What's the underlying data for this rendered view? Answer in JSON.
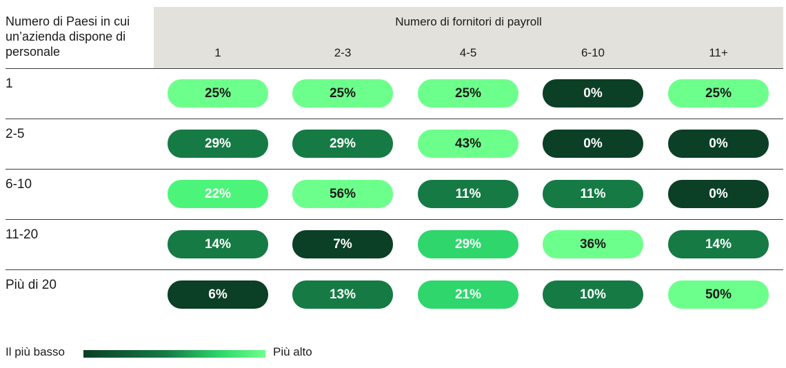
{
  "header": {
    "row_header_title": "Numero di Paesi in cui un’azienda dispone di personale",
    "col_group_title": "Numero di fornitori di payroll"
  },
  "legend": {
    "low_label": "Il più basso",
    "high_label": "Più alto"
  },
  "chart_data": {
    "type": "heatmap",
    "title": "",
    "xlabel": "Numero di fornitori di payroll",
    "ylabel": "Numero di Paesi in cui un’azienda dispone di personale",
    "columns": [
      "1",
      "2-3",
      "4-5",
      "6-10",
      "11+"
    ],
    "rows": [
      "1",
      "2-5",
      "6-10",
      "11-20",
      "Più di 20"
    ],
    "values": [
      [
        25,
        25,
        25,
        0,
        25
      ],
      [
        29,
        29,
        43,
        0,
        0
      ],
      [
        22,
        56,
        11,
        11,
        0
      ],
      [
        14,
        7,
        29,
        36,
        14
      ],
      [
        6,
        13,
        21,
        10,
        50
      ]
    ],
    "labels": [
      [
        "25%",
        "25%",
        "25%",
        "0%",
        "25%"
      ],
      [
        "29%",
        "29%",
        "43%",
        "0%",
        "0%"
      ],
      [
        "22%",
        "56%",
        "11%",
        "11%",
        "0%"
      ],
      [
        "14%",
        "7%",
        "29%",
        "36%",
        "14%"
      ],
      [
        "6%",
        "13%",
        "21%",
        "10%",
        "50%"
      ]
    ],
    "colors": [
      [
        "#6dff8c",
        "#6dff8c",
        "#6dff8c",
        "#0b3f26",
        "#6dff8c"
      ],
      [
        "#157a44",
        "#157a44",
        "#6dff8c",
        "#0b3f26",
        "#0b3f26"
      ],
      [
        "#4cf57a",
        "#6dff8c",
        "#157a44",
        "#157a44",
        "#0b3f26"
      ],
      [
        "#157a44",
        "#0b3f26",
        "#2ed66c",
        "#6dff8c",
        "#157a44"
      ],
      [
        "#0b3f26",
        "#157a44",
        "#2ed66c",
        "#157a44",
        "#6dff8c"
      ]
    ],
    "text_colors": [
      [
        "#1a1a1a",
        "#1a1a1a",
        "#1a1a1a",
        "#ffffff",
        "#1a1a1a"
      ],
      [
        "#ffffff",
        "#ffffff",
        "#1a1a1a",
        "#ffffff",
        "#ffffff"
      ],
      [
        "#ffffff",
        "#1a1a1a",
        "#ffffff",
        "#ffffff",
        "#ffffff"
      ],
      [
        "#ffffff",
        "#ffffff",
        "#ffffff",
        "#1a1a1a",
        "#ffffff"
      ],
      [
        "#ffffff",
        "#ffffff",
        "#ffffff",
        "#ffffff",
        "#1a1a1a"
      ]
    ],
    "color_scale": "Il più basso (dark green) to Più alto (light green)"
  }
}
